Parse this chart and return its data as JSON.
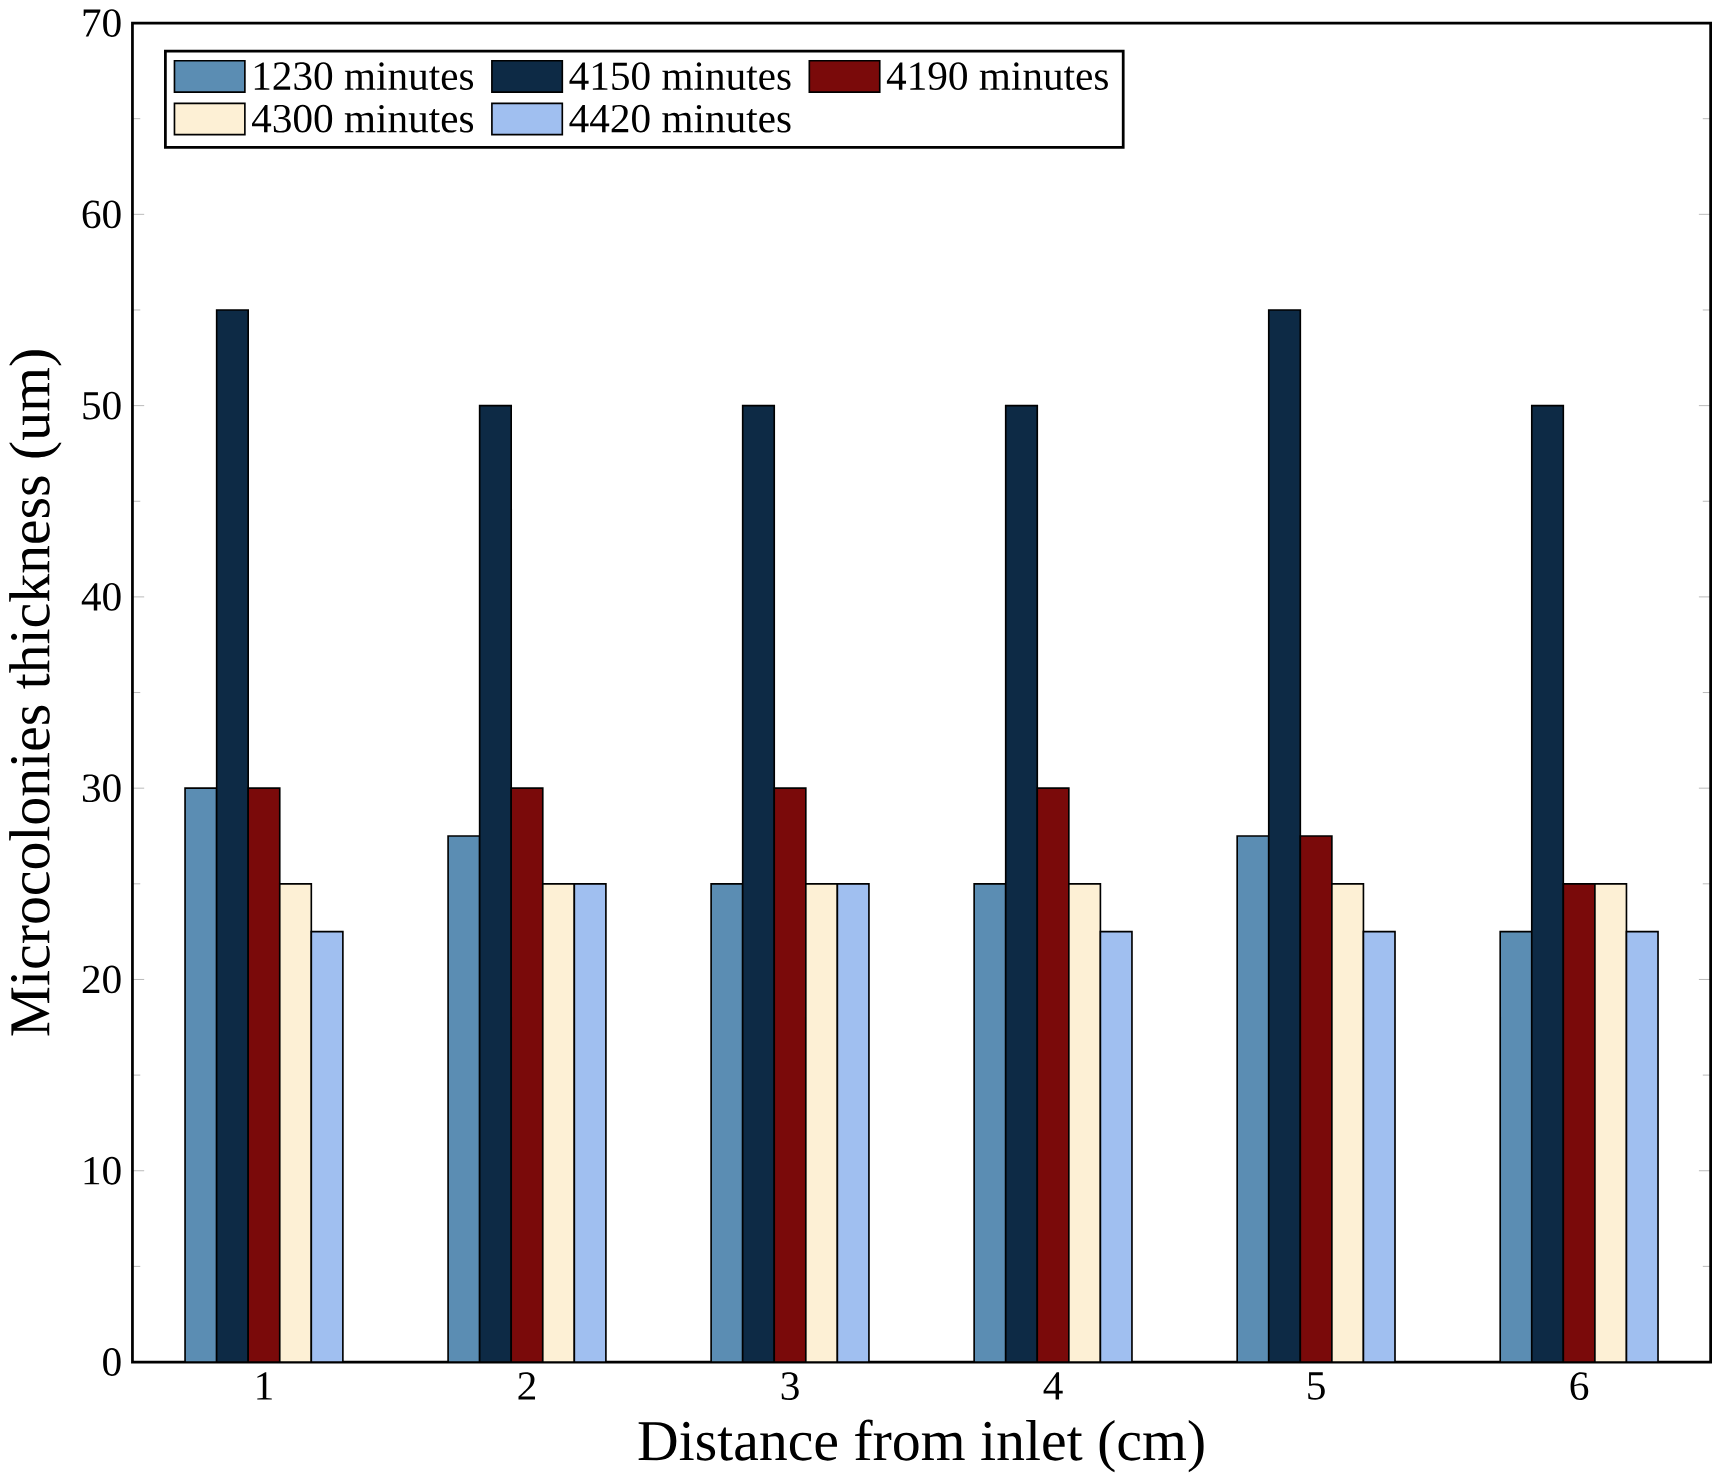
{
  "chart_data": {
    "type": "bar",
    "xlabel": "Distance from inlet (cm)",
    "ylabel": "Microcolonies thickness (um)",
    "categories": [
      "1",
      "2",
      "3",
      "4",
      "5",
      "6"
    ],
    "series": [
      {
        "name": "1230 minutes",
        "color": "#5b8db3",
        "values": [
          30,
          27.5,
          25,
          25,
          27.5,
          22.5
        ]
      },
      {
        "name": "4150 minutes",
        "color": "#0d2a45",
        "values": [
          55,
          50,
          50,
          50,
          55,
          50
        ]
      },
      {
        "name": "4190 minutes",
        "color": "#7a0a0a",
        "values": [
          30,
          30,
          30,
          30,
          27.5,
          25
        ]
      },
      {
        "name": "4300 minutes",
        "color": "#fdf0d5",
        "values": [
          25,
          25,
          25,
          25,
          25,
          25
        ]
      },
      {
        "name": "4420 minutes",
        "color": "#a0bff0",
        "values": [
          22.5,
          25,
          25,
          22.5,
          22.5,
          22.5
        ]
      }
    ],
    "ylim": [
      0,
      70
    ],
    "yticks": [
      0,
      10,
      20,
      30,
      40,
      50,
      60,
      70
    ],
    "legend": "top left"
  }
}
